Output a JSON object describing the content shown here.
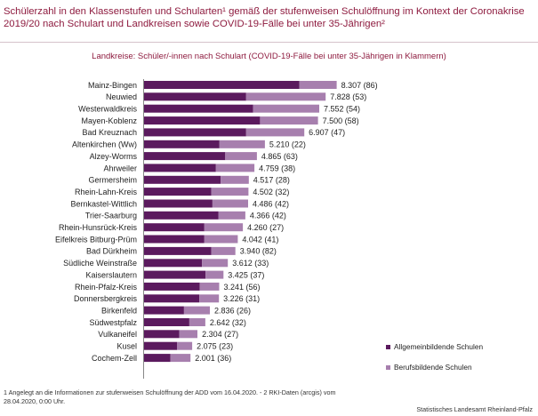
{
  "title": "Schülerzahl in den Klassenstufen und Schularten¹ gemäß der stufenweisen Schulöffnung im Kontext der Coronakrise 2019/20 nach Schulart und Landkreisen sowie COVID-19-Fälle bei unter 35-Jährigen²",
  "chart_data": {
    "type": "bar",
    "orientation": "horizontal",
    "stacked": true,
    "subtitle": "Landkreise: Schüler/-innen nach Schulart (COVID-19-Fälle bei unter 35-Jährigen in Klammern)",
    "categories": [
      "Mainz-Bingen",
      "Neuwied",
      "Westerwaldkreis",
      "Mayen-Koblenz",
      "Bad Kreuznach",
      "Altenkirchen (Ww)",
      "Alzey-Worms",
      "Ahrweiler",
      "Germersheim",
      "Rhein-Lahn-Kreis",
      "Bernkastel-Wittlich",
      "Trier-Saarburg",
      "Rhein-Hunsrück-Kreis",
      "Eifelkreis Bitburg-Prüm",
      "Bad Dürkheim",
      "Südliche Weinstraße",
      "Kaiserslautern",
      "Rhein-Pfalz-Kreis",
      "Donnersbergkreis",
      "Birkenfeld",
      "Südwestpfalz",
      "Vulkaneifel",
      "Kusel",
      "Cochem-Zell"
    ],
    "series": [
      {
        "name": "Allgemeinbildende Schulen",
        "color": "#5b1a5e",
        "values": [
          6700,
          4400,
          4700,
          5000,
          4400,
          3250,
          3500,
          3100,
          3300,
          2900,
          2950,
          3200,
          2600,
          2600,
          2900,
          2500,
          2650,
          2400,
          2380,
          1720,
          1950,
          1520,
          1420,
          1140
        ]
      },
      {
        "name": "Berufsbildende Schulen",
        "color": "#a77fae",
        "values": [
          1607,
          3428,
          2852,
          2500,
          2507,
          1960,
          1365,
          1659,
          1217,
          1602,
          1536,
          1166,
          1660,
          1442,
          1040,
          1112,
          775,
          841,
          846,
          1116,
          692,
          784,
          655,
          861
        ]
      }
    ],
    "total_labels": [
      "8.307 (86)",
      "7.828 (53)",
      "7.552 (54)",
      "7.500 (58)",
      "6.907 (47)",
      "5.210 (22)",
      "4.865 (63)",
      "4.759 (38)",
      "4.517 (28)",
      "4.502 (32)",
      "4.486 (42)",
      "4.366 (42)",
      "4.260 (27)",
      "4.042 (41)",
      "3.940 (82)",
      "3.612 (33)",
      "3.425 (37)",
      "3.241 (56)",
      "3.226 (31)",
      "2.836 (26)",
      "2.642 (32)",
      "2.304 (27)",
      "2.075 (23)",
      "2.001 (36)"
    ],
    "legend_position": "right-bottom",
    "grid": false
  },
  "footnote": "1 Angelegt an die Informationen zur stufenweisen Schulöffnung der ADD vom 16.04.2020. - 2 RKI-Daten (arcgis) vom 28.04.2020, 0:00 Uhr.",
  "source": "Statistisches Landesamt Rheinland-Pfalz"
}
